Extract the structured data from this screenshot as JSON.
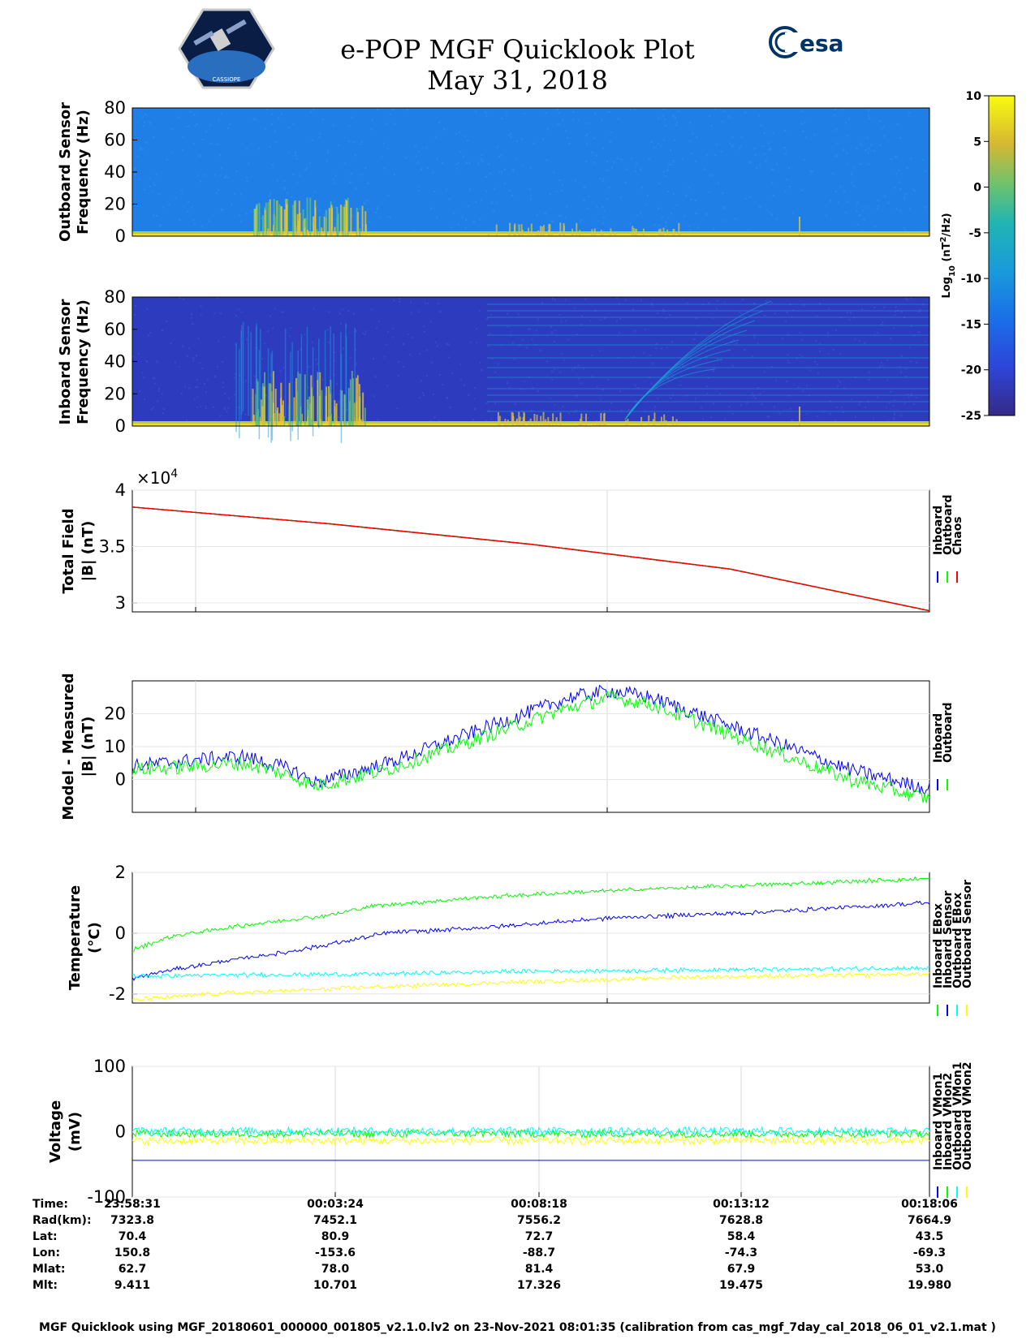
{
  "header": {
    "title_line1": "e-POP MGF Quicklook Plot",
    "title_line2": "May 31, 2018",
    "mission_logo_icon": "cassiope-mission-patch-icon",
    "agency_logo_text": "esa",
    "agency_logo_icon": "esa-logo-icon"
  },
  "colors": {
    "inboard": "#0000ff",
    "outboard": "#00ff00",
    "chaos": "#ff0000",
    "cyan": "#00ffff",
    "yellow": "#ffff00",
    "spectro_bg_outboard": "#1f7fe6",
    "spectro_bg_inboard": "#2d3bbf"
  },
  "chart_data": [
    {
      "type": "heatmap",
      "id": "outboard-spectrogram",
      "ylabel": [
        "Outboard Sensor",
        "Frequency (Hz)"
      ],
      "ylim": [
        0,
        80
      ],
      "yticks": [
        "80",
        "60",
        "40",
        "20",
        "0"
      ],
      "colorbar": {
        "label": "Log10 (nT^2/Hz)",
        "label_base": "Log",
        "label_sub": "10",
        "label_rest": " (nT",
        "label_sup": "2",
        "label_end": "/Hz)",
        "range": [
          -25,
          10
        ],
        "ticks": [
          "10",
          "5",
          "0",
          "-5",
          "-10",
          "-15",
          "-20",
          "-25"
        ]
      }
    },
    {
      "type": "heatmap",
      "id": "inboard-spectrogram",
      "ylabel": [
        "Inboard Sensor",
        "Frequency (Hz)"
      ],
      "ylim": [
        0,
        80
      ],
      "yticks": [
        "80",
        "60",
        "40",
        "20",
        "0"
      ]
    },
    {
      "type": "line",
      "id": "total-field",
      "ylabel": [
        "Total Field",
        "|B| (nT)"
      ],
      "ylim": [
        2.92,
        4.0
      ],
      "yticks": [
        "4",
        "3.5",
        "3"
      ],
      "exponent_label": "×10",
      "exponent": "4",
      "x": [
        0,
        0.25,
        0.5,
        0.75,
        1.0
      ],
      "series": [
        {
          "name": "Inboard",
          "values": [
            3.85,
            3.7,
            3.52,
            3.3,
            2.93
          ]
        },
        {
          "name": "Outboard",
          "values": [
            3.85,
            3.7,
            3.52,
            3.3,
            2.93
          ]
        },
        {
          "name": "Chaos",
          "values": [
            3.85,
            3.7,
            3.52,
            3.3,
            2.93
          ]
        }
      ],
      "legend": [
        "Inboard",
        "Outboard",
        "Chaos"
      ]
    },
    {
      "type": "line",
      "id": "model-minus-measured",
      "ylabel": [
        "Model - Measured",
        "|B| (nT)"
      ],
      "ylim": [
        -10,
        30
      ],
      "yticks": [
        "20",
        "10",
        "0"
      ],
      "series": [
        {
          "name": "Inboard",
          "x": [
            0,
            0.08,
            0.14,
            0.2,
            0.23,
            0.32,
            0.55,
            0.6,
            0.65,
            0.8,
            0.9,
            1.0
          ],
          "values": [
            4,
            6,
            7,
            3,
            -1,
            5,
            25,
            27,
            25,
            12,
            3,
            -3
          ]
        },
        {
          "name": "Outboard",
          "x": [
            0,
            0.08,
            0.14,
            0.2,
            0.23,
            0.32,
            0.55,
            0.6,
            0.65,
            0.8,
            0.9,
            1.0
          ],
          "values": [
            3,
            4,
            5,
            1,
            -2,
            3,
            22,
            25,
            23,
            9,
            0,
            -6
          ]
        }
      ],
      "legend": [
        "Inboard",
        "Outboard"
      ]
    },
    {
      "type": "line",
      "id": "temperature",
      "ylabel": [
        "Temperature",
        "(°C)"
      ],
      "ylim": [
        -2.3,
        2.0
      ],
      "yticks": [
        "2",
        "0",
        "-2"
      ],
      "series": [
        {
          "name": "Inboard EBox",
          "x": [
            0,
            0.05,
            0.15,
            0.25,
            0.3,
            0.45,
            0.6,
            0.8,
            1.0
          ],
          "values": [
            -0.55,
            -0.1,
            0.3,
            0.6,
            0.9,
            1.2,
            1.4,
            1.6,
            1.8
          ]
        },
        {
          "name": "Inboard Sensor",
          "x": [
            0,
            0.05,
            0.12,
            0.2,
            0.26,
            0.32,
            0.45,
            0.6,
            0.8,
            1.0
          ],
          "values": [
            -1.5,
            -1.2,
            -0.9,
            -0.6,
            -0.3,
            0.0,
            0.2,
            0.5,
            0.7,
            1.0
          ]
        },
        {
          "name": "Outboard EBox",
          "x": [
            0,
            0.3,
            0.5,
            0.8,
            1.0
          ],
          "values": [
            -1.4,
            -1.35,
            -1.25,
            -1.2,
            -1.15
          ]
        },
        {
          "name": "Outboard Sensor",
          "x": [
            0,
            0.1,
            0.28,
            0.5,
            0.7,
            1.0
          ],
          "values": [
            -2.2,
            -2.0,
            -1.8,
            -1.6,
            -1.45,
            -1.35
          ]
        }
      ],
      "legend": [
        "Inboard EBox",
        "Inboard Sensor",
        "Outboard EBox",
        "Outboard Sensor"
      ]
    },
    {
      "type": "line",
      "id": "voltage",
      "ylabel": [
        "Voltage",
        "(mV)"
      ],
      "ylim": [
        -100,
        100
      ],
      "yticks": [
        "100",
        "0",
        "-100"
      ],
      "series": [
        {
          "name": "Inboard VMon1",
          "x": [
            0,
            0.01,
            1.0
          ],
          "values": [
            -44,
            -44,
            -44
          ]
        },
        {
          "name": "Inboard VMon2",
          "x": [
            0,
            1.0
          ],
          "values": [
            -3,
            -3
          ]
        },
        {
          "name": "Outboard VMon1",
          "x": [
            0,
            1.0
          ],
          "values": [
            1,
            1
          ]
        },
        {
          "name": "Outboard VMon2",
          "x": [
            0,
            1.0
          ],
          "values": [
            -14,
            -14
          ]
        }
      ],
      "legend": [
        "Inboard VMon1",
        "Inboard VMon2",
        "Outboard VMon1",
        "Outboard VMon2"
      ]
    }
  ],
  "ephemeris": {
    "row_labels": [
      "Time:",
      "Rad(km):",
      "Lat:",
      "Lon:",
      "Mlat:",
      "Mlt:"
    ],
    "columns": [
      {
        "values": [
          "23:58:31",
          "7323.8",
          "70.4",
          "150.8",
          "62.7",
          "9.411"
        ]
      },
      {
        "values": [
          "00:03:24",
          "7452.1",
          "80.9",
          "-153.6",
          "78.0",
          "10.701"
        ]
      },
      {
        "values": [
          "00:08:18",
          "7556.2",
          "72.7",
          "-88.7",
          "81.4",
          "17.326"
        ]
      },
      {
        "values": [
          "00:13:12",
          "7628.8",
          "58.4",
          "-74.3",
          "67.9",
          "19.475"
        ]
      },
      {
        "values": [
          "00:18:06",
          "7664.9",
          "43.5",
          "-69.3",
          "53.0",
          "19.980"
        ]
      }
    ]
  },
  "footer": "MGF Quicklook using MGF_20180601_000000_001805_v2.1.0.lv2 on 23-Nov-2021 08:01:35 (calibration from cas_mgf_7day_cal_2018_06_01_v2.1.mat )"
}
